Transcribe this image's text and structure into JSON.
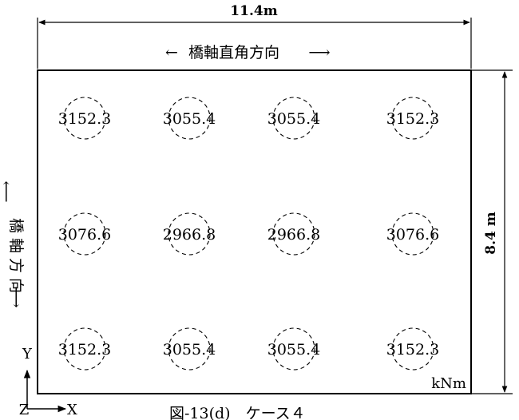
{
  "diagram": {
    "width_dim": "11.4m",
    "height_dim": "8.4 m",
    "dir_transverse": "橋軸直角方向",
    "dir_bridge_axis": "橋 軸 方 向",
    "unit": "kNm",
    "caption": "図-13(d)　ケース４",
    "axis_x": "X",
    "axis_y": "Y",
    "axis_z": "Z",
    "values": [
      [
        "3152.3",
        "3055.4",
        "3055.4",
        "3152.3"
      ],
      [
        "3076.6",
        "2966.8",
        "2966.8",
        "3076.6"
      ],
      [
        "3152.3",
        "3055.4",
        "3055.4",
        "3152.3"
      ]
    ]
  }
}
